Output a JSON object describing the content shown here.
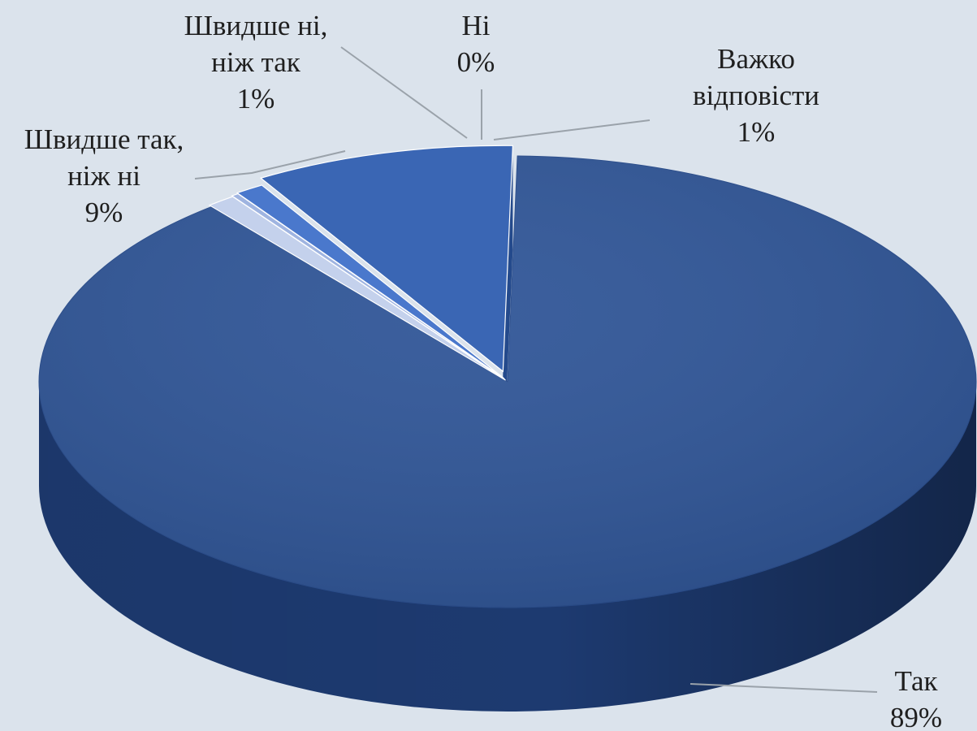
{
  "chart_data": {
    "type": "pie",
    "categories": [
      "Так",
      "Швидше так, ніж ні",
      "Швидше ні, ніж так",
      "Ні",
      "Важко відповісти"
    ],
    "values": [
      89,
      9,
      1,
      0,
      1
    ],
    "labels": [
      {
        "lines": [
          "Так",
          "89%"
        ]
      },
      {
        "lines": [
          "Швидше так,",
          "ніж ні",
          "9%"
        ]
      },
      {
        "lines": [
          "Швидше ні,",
          "ніж так",
          "1%"
        ]
      },
      {
        "lines": [
          "Ні",
          "0%"
        ]
      },
      {
        "lines": [
          "Важко",
          "відповісти",
          "1%"
        ]
      }
    ],
    "colors": [
      "#2f5597",
      "#3a66b4",
      "#4a78cc",
      "#9fb4e0",
      "#c4d1ec"
    ],
    "side_colors": [
      "#1d3a70",
      "#244a8c",
      "#2d58a4",
      "#7f95c4",
      "#a7b7d9"
    ],
    "style": "3d",
    "legend": "none",
    "grid": false
  }
}
